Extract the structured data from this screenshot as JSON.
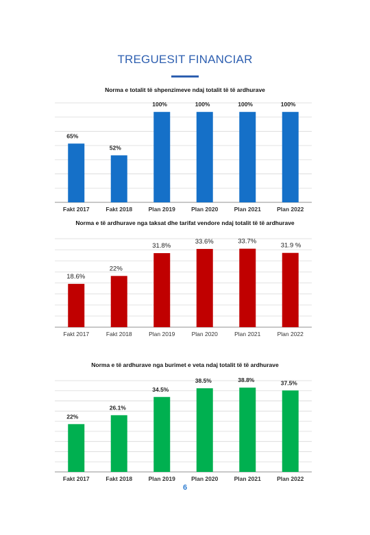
{
  "page": {
    "title": "TREGUESIT FINANCIAR",
    "page_number": "6",
    "accent_color": "#2e5fb0"
  },
  "chart_data": [
    {
      "type": "bar",
      "title": "Norma e totalit të shpenzimeve ndaj totalit të të ardhurave",
      "categories": [
        "Fakt 2017",
        "Fakt 2018",
        "Plan 2019",
        "Plan 2020",
        "Plan 2021",
        "Plan 2022"
      ],
      "values": [
        65,
        52,
        100,
        100,
        100,
        100
      ],
      "data_labels": [
        "65%",
        "52%",
        "100%",
        "100%",
        "100%",
        "100%"
      ],
      "color": "#1570c8",
      "ylim": [
        0,
        110
      ],
      "grid": true
    },
    {
      "type": "bar",
      "title": "Norma e të ardhurave nga taksat dhe tarifat vendore ndaj totalit të të ardhurave",
      "categories": [
        "Fakt 2017",
        "Fakt 2018",
        "Plan 2019",
        "Plan 2020",
        "Plan 2021",
        "Plan 2022"
      ],
      "values": [
        18.6,
        22,
        31.8,
        33.6,
        33.7,
        31.9
      ],
      "data_labels": [
        "18.6%",
        "22%",
        "31.8%",
        "33.6%",
        "33.7%",
        "31.9 %"
      ],
      "color": "#c00000",
      "ylim": [
        0,
        38
      ],
      "grid": true
    },
    {
      "type": "bar",
      "title": "Norma e të ardhurave nga burimet e veta ndaj totalit të të ardhurave",
      "categories": [
        "Fakt 2017",
        "Fakt 2018",
        "Plan 2019",
        "Plan 2020",
        "Plan 2021",
        "Plan 2022"
      ],
      "values": [
        22,
        26.1,
        34.5,
        38.5,
        38.8,
        37.5
      ],
      "data_labels": [
        "22%",
        "26.1%",
        "34.5%",
        "38.5%",
        "38.8%",
        "37.5%"
      ],
      "color": "#00b050",
      "ylim": [
        0,
        42
      ],
      "grid": true
    }
  ]
}
